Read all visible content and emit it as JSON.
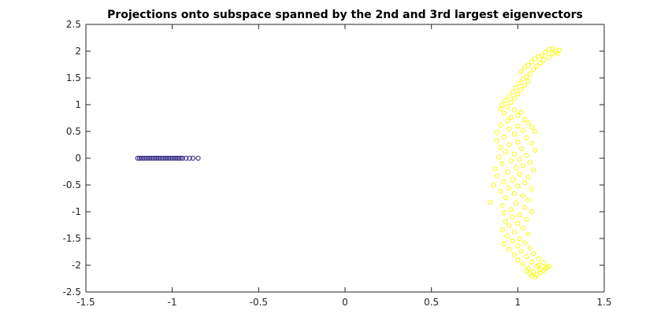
{
  "chart_data": {
    "type": "scatter",
    "title": "Projections onto subspace spanned by the 2nd and 3rd largest eigenvectors",
    "xlabel": "",
    "ylabel": "",
    "xlim": [
      -1.5,
      1.5
    ],
    "ylim": [
      -2.5,
      2.5
    ],
    "xticks": [
      "-1.5",
      "-1",
      "-0.5",
      "0",
      "0.5",
      "1",
      "1.5"
    ],
    "yticks": [
      "-2.5",
      "-2",
      "-1.5",
      "-1",
      "-0.5",
      "0",
      "0.5",
      "1",
      "1.5",
      "2",
      "2.5"
    ],
    "grid": false,
    "legend": "none",
    "marker": "open-circle",
    "series": [
      {
        "color": "#352a87",
        "points": [
          [
            -1.2,
            0
          ],
          [
            -1.19,
            0
          ],
          [
            -1.18,
            0
          ],
          [
            -1.17,
            0
          ],
          [
            -1.16,
            0
          ],
          [
            -1.15,
            0
          ],
          [
            -1.14,
            0
          ],
          [
            -1.13,
            0
          ],
          [
            -1.12,
            0
          ],
          [
            -1.11,
            0
          ],
          [
            -1.1,
            0
          ],
          [
            -1.09,
            0
          ],
          [
            -1.08,
            0
          ],
          [
            -1.07,
            0
          ],
          [
            -1.06,
            0
          ],
          [
            -1.05,
            0
          ],
          [
            -1.04,
            0
          ],
          [
            -1.03,
            0
          ],
          [
            -1.02,
            0
          ],
          [
            -1.01,
            0
          ],
          [
            -1.0,
            0
          ],
          [
            -0.99,
            0
          ],
          [
            -0.98,
            0
          ],
          [
            -0.97,
            0
          ],
          [
            -0.96,
            0
          ],
          [
            -0.95,
            0
          ],
          [
            -0.94,
            0
          ],
          [
            -0.92,
            0
          ],
          [
            -0.9,
            0
          ],
          [
            -0.88,
            0
          ],
          [
            -0.85,
            0
          ]
        ]
      },
      {
        "color": "#f9fb0e",
        "points": [
          [
            1.2,
            2.05
          ],
          [
            1.22,
            2.0
          ],
          [
            1.18,
            2.03
          ],
          [
            1.24,
            2.02
          ],
          [
            1.16,
            1.98
          ],
          [
            1.23,
            1.96
          ],
          [
            1.14,
            1.92
          ],
          [
            1.2,
            1.95
          ],
          [
            1.12,
            1.9
          ],
          [
            1.18,
            1.88
          ],
          [
            1.1,
            1.86
          ],
          [
            1.15,
            1.84
          ],
          [
            1.08,
            1.8
          ],
          [
            1.13,
            1.78
          ],
          [
            1.06,
            1.74
          ],
          [
            1.11,
            1.72
          ],
          [
            1.04,
            1.7
          ],
          [
            1.09,
            1.66
          ],
          [
            1.02,
            1.62
          ],
          [
            1.07,
            1.58
          ],
          [
            1.05,
            1.52
          ],
          [
            1.03,
            1.48
          ],
          [
            1.06,
            1.44
          ],
          [
            1.01,
            1.4
          ],
          [
            1.04,
            1.36
          ],
          [
            0.99,
            1.32
          ],
          [
            1.02,
            1.28
          ],
          [
            0.97,
            1.24
          ],
          [
            1.0,
            1.2
          ],
          [
            0.95,
            1.16
          ],
          [
            0.98,
            1.12
          ],
          [
            0.93,
            1.08
          ],
          [
            0.96,
            1.04
          ],
          [
            0.91,
            1.0
          ],
          [
            0.94,
            0.96
          ],
          [
            0.9,
            0.92
          ],
          [
            0.98,
            0.9
          ],
          [
            1.02,
            0.86
          ],
          [
            0.92,
            0.84
          ],
          [
            1.0,
            0.8
          ],
          [
            0.96,
            0.76
          ],
          [
            1.04,
            0.72
          ],
          [
            0.94,
            0.7
          ],
          [
            1.06,
            0.66
          ],
          [
            0.9,
            0.62
          ],
          [
            1.0,
            0.6
          ],
          [
            1.08,
            0.58
          ],
          [
            0.95,
            0.55
          ],
          [
            1.03,
            0.52
          ],
          [
            0.88,
            0.48
          ],
          [
            1.1,
            0.5
          ],
          [
            0.98,
            0.45
          ],
          [
            0.92,
            0.4
          ],
          [
            1.05,
            0.38
          ],
          [
            0.88,
            0.33
          ],
          [
            1.0,
            0.3
          ],
          [
            1.08,
            0.28
          ],
          [
            0.95,
            0.25
          ],
          [
            0.9,
            0.2
          ],
          [
            1.02,
            0.18
          ],
          [
            1.1,
            0.15
          ],
          [
            0.93,
            0.12
          ],
          [
            0.98,
            0.08
          ],
          [
            1.05,
            0.05
          ],
          [
            0.89,
            0.02
          ],
          [
            1.01,
            -0.02
          ],
          [
            0.96,
            -0.05
          ],
          [
            1.07,
            -0.08
          ],
          [
            0.91,
            -0.1
          ],
          [
            1.03,
            -0.14
          ],
          [
            0.99,
            -0.18
          ],
          [
            0.87,
            -0.2
          ],
          [
            1.09,
            -0.22
          ],
          [
            0.94,
            -0.26
          ],
          [
            1.01,
            -0.3
          ],
          [
            0.88,
            -0.33
          ],
          [
            1.06,
            -0.35
          ],
          [
            0.97,
            -0.4
          ],
          [
            0.92,
            -0.44
          ],
          [
            1.04,
            -0.46
          ],
          [
            0.86,
            -0.5
          ],
          [
            1.0,
            -0.52
          ],
          [
            0.95,
            -0.56
          ],
          [
            1.08,
            -0.58
          ],
          [
            0.9,
            -0.62
          ],
          [
            0.98,
            -0.66
          ],
          [
            1.03,
            -0.7
          ],
          [
            0.93,
            -0.74
          ],
          [
            1.06,
            -0.78
          ],
          [
            0.84,
            -0.82
          ],
          [
            0.99,
            -0.84
          ],
          [
            0.91,
            -0.88
          ],
          [
            1.04,
            -0.92
          ],
          [
            0.96,
            -0.96
          ],
          [
            1.08,
            -1.0
          ],
          [
            0.92,
            -1.02
          ],
          [
            1.01,
            -1.06
          ],
          [
            0.97,
            -1.1
          ],
          [
            1.05,
            -1.14
          ],
          [
            0.93,
            -1.18
          ],
          [
            1.0,
            -1.22
          ],
          [
            0.95,
            -1.26
          ],
          [
            1.03,
            -1.3
          ],
          [
            0.91,
            -1.34
          ],
          [
            0.98,
            -1.38
          ],
          [
            1.06,
            -1.42
          ],
          [
            0.94,
            -1.46
          ],
          [
            1.01,
            -1.5
          ],
          [
            0.97,
            -1.54
          ],
          [
            1.04,
            -1.58
          ],
          [
            0.92,
            -1.6
          ],
          [
            1.0,
            -1.64
          ],
          [
            1.07,
            -1.68
          ],
          [
            0.95,
            -1.7
          ],
          [
            1.02,
            -1.74
          ],
          [
            1.09,
            -1.78
          ],
          [
            0.98,
            -1.8
          ],
          [
            1.05,
            -1.84
          ],
          [
            1.12,
            -1.88
          ],
          [
            1.0,
            -1.9
          ],
          [
            1.08,
            -1.94
          ],
          [
            1.15,
            -1.96
          ],
          [
            1.03,
            -1.98
          ],
          [
            1.11,
            -2.02
          ],
          [
            1.17,
            -2.04
          ],
          [
            1.06,
            -2.06
          ],
          [
            1.13,
            -2.08
          ],
          [
            1.09,
            -2.12
          ],
          [
            1.15,
            -2.1
          ],
          [
            1.07,
            -2.15
          ],
          [
            1.11,
            -2.18
          ],
          [
            1.13,
            -2.14
          ],
          [
            1.08,
            -2.2
          ],
          [
            1.1,
            -2.22
          ],
          [
            1.16,
            -2.06
          ],
          [
            1.05,
            -2.1
          ],
          [
            1.12,
            -2.0
          ],
          [
            1.18,
            -2.02
          ]
        ]
      }
    ]
  }
}
